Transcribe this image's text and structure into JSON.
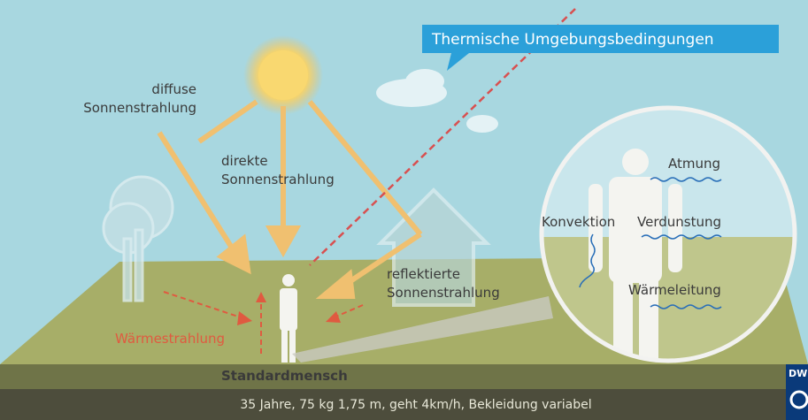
{
  "title": "Thermische Umgebungsbedingungen",
  "labels": {
    "diffuse": [
      "diffuse",
      "Sonnenstrahlung"
    ],
    "direkte": [
      "direkte",
      "Sonnenstrahlung"
    ],
    "reflektierte": [
      "reflektierte",
      "Sonnenstrahlung"
    ],
    "waermestrahlung": "Wärmestrahlung",
    "standardmensch": "Standardmensch"
  },
  "zoom": {
    "atmung": "Atmung",
    "konvektion": "Konvektion",
    "verdunstung": "Verdunstung",
    "waermeleitung": "Wärmeleitung"
  },
  "footer": "35 Jahre, 75 kg 1,75 m, geht 4km/h, Bekleidung variabel",
  "logo": "DW"
}
